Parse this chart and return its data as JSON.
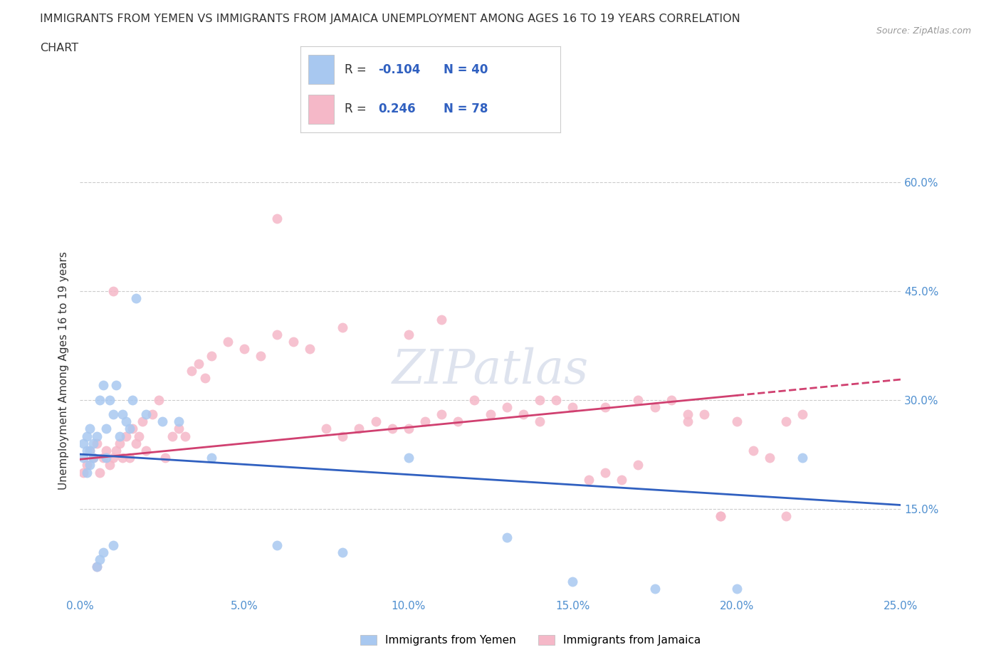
{
  "title_line1": "IMMIGRANTS FROM YEMEN VS IMMIGRANTS FROM JAMAICA UNEMPLOYMENT AMONG AGES 16 TO 19 YEARS CORRELATION",
  "title_line2": "CHART",
  "source_text": "Source: ZipAtlas.com",
  "ylabel": "Unemployment Among Ages 16 to 19 years",
  "xlim": [
    0.0,
    0.25
  ],
  "ylim": [
    0.03,
    0.65
  ],
  "xticks": [
    0.0,
    0.05,
    0.1,
    0.15,
    0.2,
    0.25
  ],
  "yticks": [
    0.15,
    0.3,
    0.45,
    0.6
  ],
  "ytick_labels": [
    "15.0%",
    "30.0%",
    "45.0%",
    "60.0%"
  ],
  "xtick_labels": [
    "0.0%",
    "5.0%",
    "10.0%",
    "15.0%",
    "20.0%",
    "25.0%"
  ],
  "background_color": "#ffffff",
  "watermark": "ZIPatlas",
  "legend_R_yemen": "-0.104",
  "legend_N_yemen": "40",
  "legend_R_jamaica": "0.246",
  "legend_N_jamaica": "78",
  "color_yemen": "#a8c8f0",
  "color_jamaica": "#f5b8c8",
  "color_trendline_yemen": "#3060c0",
  "color_trendline_jamaica": "#d04070",
  "color_axis_labels": "#5090d0",
  "color_legend_text": "#3060c0",
  "yemen_x": [
    0.001,
    0.001,
    0.002,
    0.002,
    0.002,
    0.003,
    0.003,
    0.003,
    0.004,
    0.004,
    0.005,
    0.005,
    0.006,
    0.006,
    0.007,
    0.007,
    0.008,
    0.008,
    0.009,
    0.01,
    0.01,
    0.011,
    0.012,
    0.013,
    0.014,
    0.015,
    0.016,
    0.017,
    0.02,
    0.025,
    0.03,
    0.04,
    0.06,
    0.08,
    0.1,
    0.13,
    0.15,
    0.175,
    0.2,
    0.22
  ],
  "yemen_y": [
    0.22,
    0.24,
    0.2,
    0.23,
    0.25,
    0.21,
    0.26,
    0.23,
    0.22,
    0.24,
    0.25,
    0.07,
    0.3,
    0.08,
    0.32,
    0.09,
    0.26,
    0.22,
    0.3,
    0.28,
    0.1,
    0.32,
    0.25,
    0.28,
    0.27,
    0.26,
    0.3,
    0.44,
    0.28,
    0.27,
    0.27,
    0.22,
    0.1,
    0.09,
    0.22,
    0.11,
    0.05,
    0.04,
    0.04,
    0.22
  ],
  "jamaica_x": [
    0.001,
    0.002,
    0.003,
    0.004,
    0.005,
    0.006,
    0.007,
    0.008,
    0.009,
    0.01,
    0.011,
    0.012,
    0.013,
    0.014,
    0.015,
    0.016,
    0.017,
    0.018,
    0.019,
    0.02,
    0.022,
    0.024,
    0.026,
    0.028,
    0.03,
    0.032,
    0.034,
    0.036,
    0.038,
    0.04,
    0.045,
    0.05,
    0.055,
    0.06,
    0.065,
    0.07,
    0.075,
    0.08,
    0.085,
    0.09,
    0.095,
    0.1,
    0.105,
    0.11,
    0.115,
    0.12,
    0.125,
    0.13,
    0.135,
    0.14,
    0.145,
    0.15,
    0.155,
    0.16,
    0.165,
    0.17,
    0.175,
    0.18,
    0.185,
    0.19,
    0.195,
    0.2,
    0.205,
    0.21,
    0.215,
    0.22,
    0.005,
    0.01,
    0.06,
    0.08,
    0.1,
    0.11,
    0.14,
    0.16,
    0.17,
    0.185,
    0.195,
    0.215
  ],
  "jamaica_y": [
    0.2,
    0.21,
    0.23,
    0.22,
    0.24,
    0.2,
    0.22,
    0.23,
    0.21,
    0.22,
    0.23,
    0.24,
    0.22,
    0.25,
    0.22,
    0.26,
    0.24,
    0.25,
    0.27,
    0.23,
    0.28,
    0.3,
    0.22,
    0.25,
    0.26,
    0.25,
    0.34,
    0.35,
    0.33,
    0.36,
    0.38,
    0.37,
    0.36,
    0.39,
    0.38,
    0.37,
    0.26,
    0.25,
    0.26,
    0.27,
    0.26,
    0.26,
    0.27,
    0.28,
    0.27,
    0.3,
    0.28,
    0.29,
    0.28,
    0.27,
    0.3,
    0.29,
    0.19,
    0.2,
    0.19,
    0.21,
    0.29,
    0.3,
    0.27,
    0.28,
    0.14,
    0.27,
    0.23,
    0.22,
    0.27,
    0.28,
    0.07,
    0.45,
    0.55,
    0.4,
    0.39,
    0.41,
    0.3,
    0.29,
    0.3,
    0.28,
    0.14,
    0.14
  ]
}
